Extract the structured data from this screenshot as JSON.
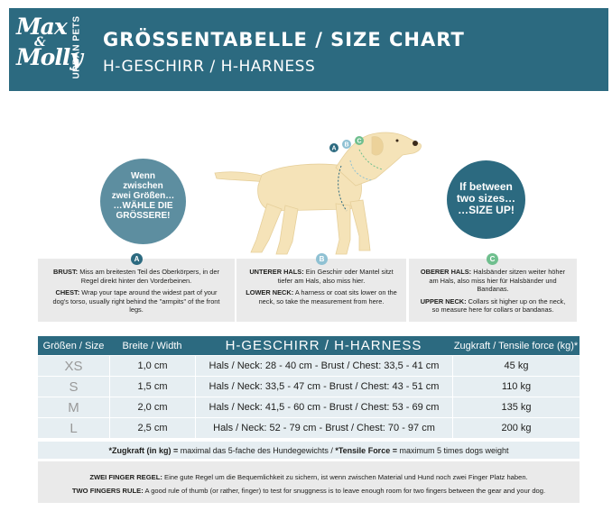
{
  "header": {
    "logo_text_line1": "Max",
    "logo_text_amp": "&",
    "logo_text_line2": "Molly",
    "logo_side": "URBAN PETS",
    "title": "GRÖSSENTABELLE / SIZE CHART",
    "subtitle": "H-GESCHIRR / H-HARNESS"
  },
  "circles": {
    "left": {
      "line1": "Wenn",
      "line2": "zwischen",
      "line3": "zwei Größen…",
      "line4": "…WÄHLE DIE",
      "line5": "GRÖSSERE!"
    },
    "right": {
      "line1": "If between",
      "line2": "two sizes…",
      "line3": "…SIZE UP!"
    }
  },
  "dog_markers": [
    "A",
    "B",
    "C"
  ],
  "info": {
    "a": {
      "badge": "A",
      "de_label": "BRUST:",
      "de_text": "Miss am breitesten Teil des Oberkörpers, in der Regel direkt hinter den Vorderbeinen.",
      "en_label": "CHEST:",
      "en_text": "Wrap your tape around the widest part of your dog's torso, usually right behind the \"armpits\" of the front legs."
    },
    "b": {
      "badge": "B",
      "de_label": "UNTERER HALS:",
      "de_text": "Ein Geschirr oder Mantel sitzt tiefer am Hals, also miss hier.",
      "en_label": "LOWER NECK:",
      "en_text": "A harness or coat sits lower on the neck, so take the measurement from here."
    },
    "c": {
      "badge": "C",
      "de_label": "OBERER HALS:",
      "de_text": "Halsbänder sitzen weiter höher am Hals, also miss hier für Halsbänder und Bandanas.",
      "en_label": "UPPER NECK:",
      "en_text": "Collars sit higher up on the neck, so measure here for collars or bandanas."
    }
  },
  "table": {
    "headers": [
      "Größen / Size",
      "Breite / Width",
      "H-GESCHIRR / H-HARNESS",
      "Zugkraft / Tensile force (kg)*"
    ],
    "rows": [
      {
        "size": "XS",
        "width": "1,0 cm",
        "measure": "Hals / Neck: 28 - 40 cm - Brust / Chest: 33,5 - 41 cm",
        "force": "45 kg"
      },
      {
        "size": "S",
        "width": "1,5 cm",
        "measure": "Hals / Neck: 33,5 - 47 cm - Brust / Chest: 43 - 51 cm",
        "force": "110 kg"
      },
      {
        "size": "M",
        "width": "2,0 cm",
        "measure": "Hals / Neck: 41,5 - 60 cm - Brust / Chest: 53 - 69 cm",
        "force": "135 kg"
      },
      {
        "size": "L",
        "width": "2,5 cm",
        "measure": "Hals / Neck: 52 - 79 cm - Brust / Chest: 70 - 97 cm",
        "force": "200 kg"
      }
    ],
    "note_bold1": "*Zugkraft (in kg) = ",
    "note_text1": "maximal das 5-fache des Hundegewichts / ",
    "note_bold2": "*Tensile Force = ",
    "note_text2": "maximum 5 times dogs weight"
  },
  "footer": {
    "de_label": "ZWEI FINGER REGEL:",
    "de_text": " Eine gute Regel um die Bequemlichkeit zu sichern, ist wenn zwischen Material und Hund noch zwei Finger Platz haben.",
    "en_label": "TWO FINGERS RULE:",
    "en_text": " A good rule of thumb (or rather, finger) to test for snuggness is to leave enough room for two fingers between the gear and your dog."
  },
  "colors": {
    "brand": "#2c6a80",
    "circle_light": "#5d8ea0",
    "badge_b": "#8fc1d3",
    "badge_c": "#6fbf8e",
    "row_bg": "#e6eef2",
    "panel_bg": "#eaeaea",
    "dog": "#f5e3b8"
  }
}
